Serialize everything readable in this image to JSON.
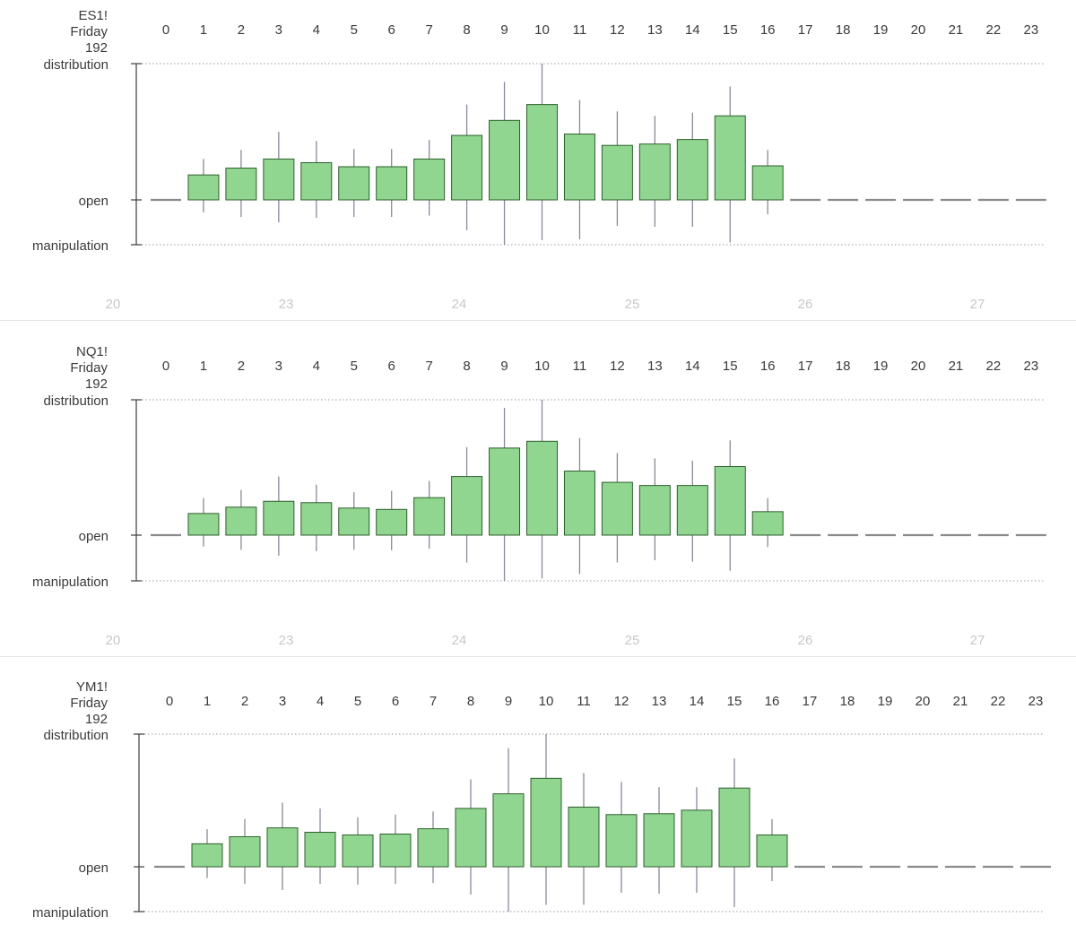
{
  "colors": {
    "candle_fill": "#90d590",
    "candle_border": "#2e5f2e",
    "wick": "#8a8a9a",
    "flat_line": "#8a8a8e",
    "axis_line": "#3c3c3c",
    "grid_dotted": "#9a9a9a",
    "label_text": "#3a3a3a",
    "bottom_tick_text": "#c6c8cc",
    "divider": "#e4e6ea"
  },
  "chart_data": [
    {
      "type": "candlestick",
      "symbol": "ES1!",
      "day": "Friday",
      "count": "192",
      "ytick_labels": {
        "top": "distribution",
        "mid": "open",
        "bottom": "manipulation"
      },
      "ylim": [
        -1,
        3
      ],
      "hours": [
        "0",
        "1",
        "2",
        "3",
        "4",
        "5",
        "6",
        "7",
        "8",
        "9",
        "10",
        "11",
        "12",
        "13",
        "14",
        "15",
        "16",
        "17",
        "18",
        "19",
        "20",
        "21",
        "22",
        "23"
      ],
      "bottom_axis_labels": [
        "20",
        "23",
        "24",
        "25",
        "26",
        "27"
      ],
      "candles": [
        {
          "hour": "0",
          "open": 0,
          "close": 0,
          "high": 0,
          "low": 0
        },
        {
          "hour": "1",
          "open": 0,
          "close": 0.55,
          "high": 0.9,
          "low": -0.28
        },
        {
          "hour": "2",
          "open": 0,
          "close": 0.7,
          "high": 1.1,
          "low": -0.38
        },
        {
          "hour": "3",
          "open": 0,
          "close": 0.9,
          "high": 1.5,
          "low": -0.5
        },
        {
          "hour": "4",
          "open": 0,
          "close": 0.82,
          "high": 1.3,
          "low": -0.4
        },
        {
          "hour": "5",
          "open": 0,
          "close": 0.73,
          "high": 1.12,
          "low": -0.38
        },
        {
          "hour": "6",
          "open": 0,
          "close": 0.73,
          "high": 1.12,
          "low": -0.38
        },
        {
          "hour": "7",
          "open": 0,
          "close": 0.9,
          "high": 1.32,
          "low": -0.35
        },
        {
          "hour": "8",
          "open": 0,
          "close": 1.42,
          "high": 2.1,
          "low": -0.68
        },
        {
          "hour": "9",
          "open": 0,
          "close": 1.75,
          "high": 2.6,
          "low": -1
        },
        {
          "hour": "10",
          "open": 0,
          "close": 2.1,
          "high": 3,
          "low": -0.9
        },
        {
          "hour": "11",
          "open": 0,
          "close": 1.45,
          "high": 2.2,
          "low": -0.88
        },
        {
          "hour": "12",
          "open": 0,
          "close": 1.2,
          "high": 1.95,
          "low": -0.58
        },
        {
          "hour": "13",
          "open": 0,
          "close": 1.23,
          "high": 1.85,
          "low": -0.6
        },
        {
          "hour": "14",
          "open": 0,
          "close": 1.33,
          "high": 1.92,
          "low": -0.6
        },
        {
          "hour": "15",
          "open": 0,
          "close": 1.85,
          "high": 2.5,
          "low": -0.95
        },
        {
          "hour": "16",
          "open": 0,
          "close": 0.75,
          "high": 1.1,
          "low": -0.32
        },
        {
          "hour": "17",
          "open": 0,
          "close": 0,
          "high": 0,
          "low": 0
        },
        {
          "hour": "18",
          "open": 0,
          "close": 0,
          "high": 0,
          "low": 0
        },
        {
          "hour": "19",
          "open": 0,
          "close": 0,
          "high": 0,
          "low": 0
        },
        {
          "hour": "20",
          "open": 0,
          "close": 0,
          "high": 0,
          "low": 0
        },
        {
          "hour": "21",
          "open": 0,
          "close": 0,
          "high": 0,
          "low": 0
        },
        {
          "hour": "22",
          "open": 0,
          "close": 0,
          "high": 0,
          "low": 0
        },
        {
          "hour": "23",
          "open": 0,
          "close": 0,
          "high": 0,
          "low": 0
        }
      ]
    },
    {
      "type": "candlestick",
      "symbol": "NQ1!",
      "day": "Friday",
      "count": "192",
      "ytick_labels": {
        "top": "distribution",
        "mid": "open",
        "bottom": "manipulation"
      },
      "ylim": [
        -1,
        3
      ],
      "hours": [
        "0",
        "1",
        "2",
        "3",
        "4",
        "5",
        "6",
        "7",
        "8",
        "9",
        "10",
        "11",
        "12",
        "13",
        "14",
        "15",
        "16",
        "17",
        "18",
        "19",
        "20",
        "21",
        "22",
        "23"
      ],
      "bottom_axis_labels": [
        "20",
        "23",
        "24",
        "25",
        "26",
        "27"
      ],
      "candles": [
        {
          "hour": "0",
          "open": 0,
          "close": 0,
          "high": 0,
          "low": 0
        },
        {
          "hour": "1",
          "open": 0,
          "close": 0.48,
          "high": 0.82,
          "low": -0.25
        },
        {
          "hour": "2",
          "open": 0,
          "close": 0.62,
          "high": 1.0,
          "low": -0.32
        },
        {
          "hour": "3",
          "open": 0,
          "close": 0.75,
          "high": 1.3,
          "low": -0.45
        },
        {
          "hour": "4",
          "open": 0,
          "close": 0.72,
          "high": 1.12,
          "low": -0.35
        },
        {
          "hour": "5",
          "open": 0,
          "close": 0.6,
          "high": 0.95,
          "low": -0.32
        },
        {
          "hour": "6",
          "open": 0,
          "close": 0.57,
          "high": 0.98,
          "low": -0.33
        },
        {
          "hour": "7",
          "open": 0,
          "close": 0.83,
          "high": 1.2,
          "low": -0.3
        },
        {
          "hour": "8",
          "open": 0,
          "close": 1.3,
          "high": 1.95,
          "low": -0.6
        },
        {
          "hour": "9",
          "open": 0,
          "close": 1.93,
          "high": 2.82,
          "low": -1
        },
        {
          "hour": "10",
          "open": 0,
          "close": 2.08,
          "high": 3,
          "low": -0.95
        },
        {
          "hour": "11",
          "open": 0,
          "close": 1.42,
          "high": 2.15,
          "low": -0.85
        },
        {
          "hour": "12",
          "open": 0,
          "close": 1.17,
          "high": 1.82,
          "low": -0.6
        },
        {
          "hour": "13",
          "open": 0,
          "close": 1.1,
          "high": 1.7,
          "low": -0.55
        },
        {
          "hour": "14",
          "open": 0,
          "close": 1.1,
          "high": 1.65,
          "low": -0.58
        },
        {
          "hour": "15",
          "open": 0,
          "close": 1.52,
          "high": 2.1,
          "low": -0.78
        },
        {
          "hour": "16",
          "open": 0,
          "close": 0.52,
          "high": 0.82,
          "low": -0.26
        },
        {
          "hour": "17",
          "open": 0,
          "close": 0,
          "high": 0,
          "low": 0
        },
        {
          "hour": "18",
          "open": 0,
          "close": 0,
          "high": 0,
          "low": 0
        },
        {
          "hour": "19",
          "open": 0,
          "close": 0,
          "high": 0,
          "low": 0
        },
        {
          "hour": "20",
          "open": 0,
          "close": 0,
          "high": 0,
          "low": 0
        },
        {
          "hour": "21",
          "open": 0,
          "close": 0,
          "high": 0,
          "low": 0
        },
        {
          "hour": "22",
          "open": 0,
          "close": 0,
          "high": 0,
          "low": 0
        },
        {
          "hour": "23",
          "open": 0,
          "close": 0,
          "high": 0,
          "low": 0
        }
      ]
    },
    {
      "type": "candlestick",
      "symbol": "YM1!",
      "day": "Friday",
      "count": "192",
      "ytick_labels": {
        "top": "distribution",
        "mid": "open",
        "bottom": "manipulation"
      },
      "ylim": [
        -1,
        3
      ],
      "hours": [
        "0",
        "1",
        "2",
        "3",
        "4",
        "5",
        "6",
        "7",
        "8",
        "9",
        "10",
        "11",
        "12",
        "13",
        "14",
        "15",
        "16",
        "17",
        "18",
        "19",
        "20",
        "21",
        "22",
        "23"
      ],
      "bottom_axis_labels": [],
      "candles": [
        {
          "hour": "0",
          "open": 0,
          "close": 0,
          "high": 0,
          "low": 0
        },
        {
          "hour": "1",
          "open": 0,
          "close": 0.52,
          "high": 0.85,
          "low": -0.25
        },
        {
          "hour": "2",
          "open": 0,
          "close": 0.68,
          "high": 1.08,
          "low": -0.38
        },
        {
          "hour": "3",
          "open": 0,
          "close": 0.88,
          "high": 1.45,
          "low": -0.52
        },
        {
          "hour": "4",
          "open": 0,
          "close": 0.78,
          "high": 1.32,
          "low": -0.38
        },
        {
          "hour": "5",
          "open": 0,
          "close": 0.72,
          "high": 1.12,
          "low": -0.4
        },
        {
          "hour": "6",
          "open": 0,
          "close": 0.74,
          "high": 1.18,
          "low": -0.38
        },
        {
          "hour": "7",
          "open": 0,
          "close": 0.86,
          "high": 1.25,
          "low": -0.36
        },
        {
          "hour": "8",
          "open": 0,
          "close": 1.32,
          "high": 1.98,
          "low": -0.62
        },
        {
          "hour": "9",
          "open": 0,
          "close": 1.65,
          "high": 2.68,
          "low": -1
        },
        {
          "hour": "10",
          "open": 0,
          "close": 2,
          "high": 3,
          "low": -0.85
        },
        {
          "hour": "11",
          "open": 0,
          "close": 1.35,
          "high": 2.12,
          "low": -0.85
        },
        {
          "hour": "12",
          "open": 0,
          "close": 1.18,
          "high": 1.92,
          "low": -0.58
        },
        {
          "hour": "13",
          "open": 0,
          "close": 1.2,
          "high": 1.8,
          "low": -0.6
        },
        {
          "hour": "14",
          "open": 0,
          "close": 1.28,
          "high": 1.8,
          "low": -0.58
        },
        {
          "hour": "15",
          "open": 0,
          "close": 1.78,
          "high": 2.45,
          "low": -0.9
        },
        {
          "hour": "16",
          "open": 0,
          "close": 0.72,
          "high": 1.08,
          "low": -0.32
        },
        {
          "hour": "17",
          "open": 0,
          "close": 0,
          "high": 0,
          "low": 0
        },
        {
          "hour": "18",
          "open": 0,
          "close": 0,
          "high": 0,
          "low": 0
        },
        {
          "hour": "19",
          "open": 0,
          "close": 0,
          "high": 0,
          "low": 0
        },
        {
          "hour": "20",
          "open": 0,
          "close": 0,
          "high": 0,
          "low": 0
        },
        {
          "hour": "21",
          "open": 0,
          "close": 0,
          "high": 0,
          "low": 0
        },
        {
          "hour": "22",
          "open": 0,
          "close": 0,
          "high": 0,
          "low": 0
        },
        {
          "hour": "23",
          "open": 0,
          "close": 0,
          "high": 0,
          "low": 0
        }
      ]
    }
  ]
}
